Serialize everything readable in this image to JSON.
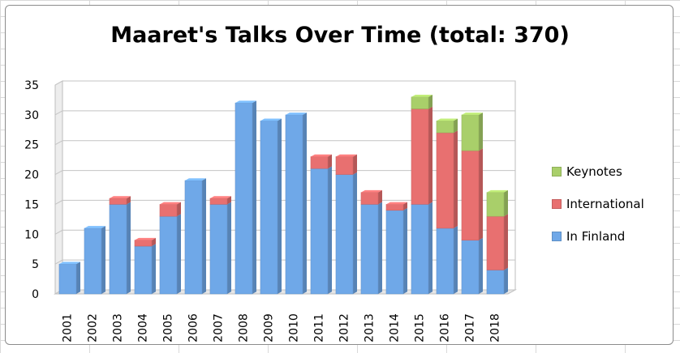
{
  "chart_data": {
    "type": "bar",
    "stacked": true,
    "title": "Maaret's Talks Over Time (total: 370)",
    "xlabel": "",
    "ylabel": "",
    "ylim": [
      0,
      35
    ],
    "yticks": [
      0,
      5,
      10,
      15,
      20,
      25,
      30,
      35
    ],
    "grid": true,
    "legend_position": "right",
    "categories": [
      "2001",
      "2002",
      "2003",
      "2004",
      "2005",
      "2006",
      "2007",
      "2008",
      "2009",
      "2010",
      "2011",
      "2012",
      "2013",
      "2014",
      "2015",
      "2016",
      "2017",
      "2018"
    ],
    "series": [
      {
        "name": "In Finland",
        "color": "#6fa8e8",
        "values": [
          5,
          11,
          15,
          8,
          13,
          19,
          15,
          32,
          29,
          30,
          21,
          20,
          15,
          14,
          15,
          11,
          9,
          4
        ]
      },
      {
        "name": "International",
        "color": "#e87070",
        "values": [
          0,
          0,
          1,
          1,
          2,
          0,
          1,
          0,
          0,
          0,
          2,
          3,
          2,
          1,
          16,
          16,
          15,
          9
        ]
      },
      {
        "name": "Keynotes",
        "color": "#a9cf6a",
        "values": [
          0,
          0,
          0,
          0,
          0,
          0,
          0,
          0,
          0,
          0,
          0,
          0,
          0,
          0,
          2,
          2,
          6,
          4
        ]
      }
    ],
    "legend_order": [
      "Keynotes",
      "International",
      "In Finland"
    ]
  }
}
